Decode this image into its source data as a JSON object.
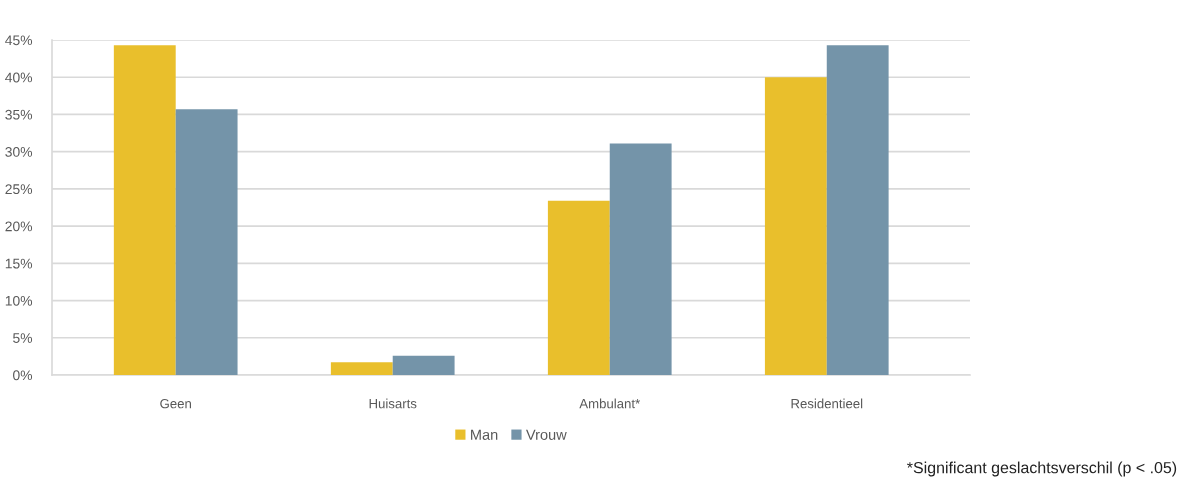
{
  "chart_data": {
    "type": "bar",
    "categories": [
      "Geen",
      "Huisarts",
      "Ambulant*",
      "Residentieel"
    ],
    "series": [
      {
        "name": "Man",
        "color": "#e9bf2c",
        "values": [
          44.3,
          1.7,
          23.4,
          40.0
        ]
      },
      {
        "name": "Vrouw",
        "color": "#7494a9",
        "values": [
          35.7,
          2.6,
          31.1,
          44.3
        ]
      }
    ],
    "ylim": [
      0,
      45
    ],
    "yticks": [
      {
        "value": 0,
        "label": "0%"
      },
      {
        "value": 5,
        "label": "5%"
      },
      {
        "value": 10,
        "label": "10%"
      },
      {
        "value": 15,
        "label": "15%"
      },
      {
        "value": 20,
        "label": "20%"
      },
      {
        "value": 25,
        "label": "25%"
      },
      {
        "value": 30,
        "label": "30%"
      },
      {
        "value": 35,
        "label": "35%"
      },
      {
        "value": 40,
        "label": "40%"
      },
      {
        "value": 45,
        "label": "45%"
      }
    ],
    "grid": "y",
    "legend": "bottom",
    "annotations": [
      "*Significant geslachtsverschil (p < .05)"
    ]
  }
}
